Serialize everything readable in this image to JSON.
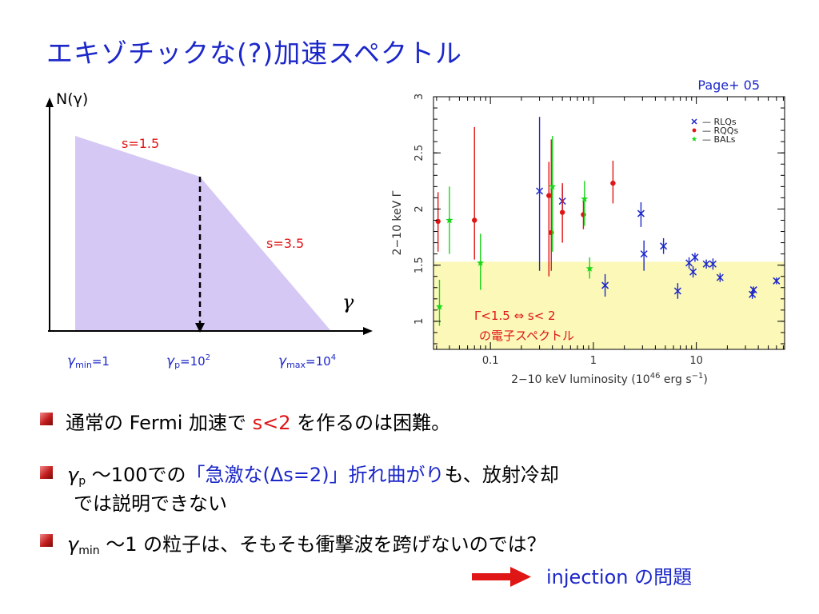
{
  "title": "エキゾチックな(?)加速スペクトル",
  "left_diagram": {
    "y_label": "N(γ)",
    "x_label": "γ",
    "slope1": "s=1.5",
    "slope2": "s=3.5",
    "tick_gmin": {
      "sym": "γ",
      "sub": "min",
      "val": "=1"
    },
    "tick_gp": {
      "sym": "γ",
      "sub": "p",
      "val": "=10",
      "sup": "2"
    },
    "tick_gmax": {
      "sym": "γ",
      "sub": "max",
      "val": "=10",
      "sup": "4"
    },
    "fill_color": "#d6c8f5"
  },
  "chart_data": {
    "type": "scatter",
    "source": "Page+ 05",
    "xlabel": "2−10 keV luminosity (10",
    "xlabel_sup": "46",
    "xlabel_tail": " erg s",
    "xlabel_sup2": "−1",
    "xlabel_end": ")",
    "ylabel": "2−10 keV Γ",
    "xscale": "log",
    "xlim": [
      0.028,
      72
    ],
    "ylim": [
      0.75,
      3.0
    ],
    "xticks": [
      {
        "v": 0.1,
        "label": "0.1"
      },
      {
        "v": 1,
        "label": "1"
      },
      {
        "v": 10,
        "label": "10"
      }
    ],
    "yticks": [
      {
        "v": 1,
        "label": "1"
      },
      {
        "v": 1.5,
        "label": "1.5"
      },
      {
        "v": 2,
        "label": "2"
      },
      {
        "v": 2.5,
        "label": "2.5"
      },
      {
        "v": 3,
        "label": "3"
      }
    ],
    "band": {
      "y0": 0.75,
      "y1": 1.53,
      "color": "#fbf8b8"
    },
    "band_label1": "Γ<1.5 ⇔ s< 2",
    "band_label2": "の電子スペクトル",
    "legend": [
      {
        "marker": "x",
        "color": "#1c27c9",
        "label": "— RLQs"
      },
      {
        "marker": "dot",
        "color": "#e01515",
        "label": "— RQQs"
      },
      {
        "marker": "star",
        "color": "#19d619",
        "label": "— BALs"
      }
    ],
    "series": [
      {
        "name": "RLQs",
        "marker": "x",
        "color": "#1c27c9",
        "points": [
          {
            "x": 0.3,
            "y": 2.16,
            "lo": 1.45,
            "hi": 2.82
          },
          {
            "x": 0.5,
            "y": 2.07,
            "lo": 1.95,
            "hi": 2.2
          },
          {
            "x": 1.3,
            "y": 1.32,
            "lo": 1.22,
            "hi": 1.42
          },
          {
            "x": 2.9,
            "y": 1.96,
            "lo": 1.84,
            "hi": 2.06
          },
          {
            "x": 3.1,
            "y": 1.6,
            "lo": 1.45,
            "hi": 1.72
          },
          {
            "x": 4.8,
            "y": 1.67,
            "lo": 1.6,
            "hi": 1.74
          },
          {
            "x": 6.6,
            "y": 1.27,
            "lo": 1.2,
            "hi": 1.34
          },
          {
            "x": 8.5,
            "y": 1.52,
            "lo": 1.47,
            "hi": 1.57
          },
          {
            "x": 9.3,
            "y": 1.44,
            "lo": 1.39,
            "hi": 1.49
          },
          {
            "x": 9.7,
            "y": 1.57,
            "lo": 1.53,
            "hi": 1.61
          },
          {
            "x": 12.5,
            "y": 1.51,
            "lo": 1.47,
            "hi": 1.55
          },
          {
            "x": 14.5,
            "y": 1.51,
            "lo": 1.46,
            "hi": 1.56
          },
          {
            "x": 17,
            "y": 1.39,
            "lo": 1.35,
            "hi": 1.43
          },
          {
            "x": 35,
            "y": 1.24,
            "lo": 1.2,
            "hi": 1.28
          },
          {
            "x": 36,
            "y": 1.28,
            "lo": 1.25,
            "hi": 1.31
          },
          {
            "x": 60,
            "y": 1.36,
            "lo": 1.33,
            "hi": 1.39
          }
        ]
      },
      {
        "name": "RQQs",
        "marker": "dot",
        "color": "#e01515",
        "points": [
          {
            "x": 0.031,
            "y": 1.89,
            "lo": 1.62,
            "hi": 2.15
          },
          {
            "x": 0.07,
            "y": 1.9,
            "lo": 1.55,
            "hi": 2.73
          },
          {
            "x": 0.37,
            "y": 2.12,
            "lo": 1.4,
            "hi": 2.42
          },
          {
            "x": 0.39,
            "y": 1.79,
            "lo": 1.45,
            "hi": 2.62
          },
          {
            "x": 0.5,
            "y": 1.97,
            "lo": 1.7,
            "hi": 2.23
          },
          {
            "x": 0.8,
            "y": 1.95,
            "lo": 1.82,
            "hi": 2.07
          },
          {
            "x": 1.55,
            "y": 2.23,
            "lo": 2.05,
            "hi": 2.43
          }
        ]
      },
      {
        "name": "BALs",
        "marker": "star",
        "color": "#19d619",
        "points": [
          {
            "x": 0.032,
            "y": 1.13,
            "lo": 0.96,
            "hi": 1.37
          },
          {
            "x": 0.04,
            "y": 1.9,
            "lo": 1.6,
            "hi": 2.2
          },
          {
            "x": 0.08,
            "y": 1.52,
            "lo": 1.28,
            "hi": 1.78
          },
          {
            "x": 0.4,
            "y": 2.2,
            "lo": 1.62,
            "hi": 2.65
          },
          {
            "x": 0.82,
            "y": 2.09,
            "lo": 1.85,
            "hi": 2.25
          },
          {
            "x": 0.92,
            "y": 1.47,
            "lo": 1.38,
            "hi": 1.57
          }
        ]
      }
    ]
  },
  "bullets": [
    {
      "text_a": "通常の Fermi 加速で ",
      "text_red": "s<2",
      "text_b": " を作るのは困難。"
    },
    {
      "sym": "γ",
      "sub": "p",
      "text_a": " ～100での",
      "text_blue": "「急激な(Δs=2)」折れ曲がり",
      "text_b": "も、放射冷却",
      "line2": "では説明できない"
    },
    {
      "sym": "γ",
      "sub": "min",
      "text_a": " ～1 の粒子は、そもそも衝撃波を跨げないのでは？"
    }
  ],
  "injection_label": "injection の問題",
  "colors": {
    "title": "#1c27c9",
    "accent_red": "#e01515",
    "arrow": "#e01515"
  }
}
